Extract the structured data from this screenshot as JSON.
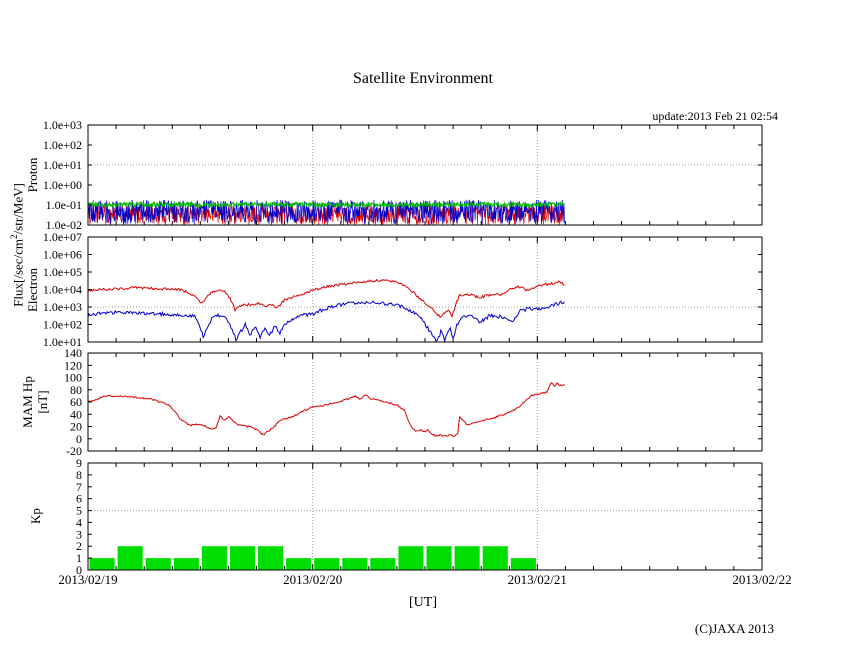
{
  "page": {
    "title": "Satellite Environment",
    "update_text": "update:2013 Feb 21 02:54",
    "x_axis_label": "[UT]",
    "copyright": "(C)JAXA 2013"
  },
  "axis_labels": {
    "flux_pre": "Flux[/sec/cm",
    "flux_sup": "2",
    "flux_post": "/str/MeV]",
    "proton": "Proton",
    "electron": "Electron",
    "mam_line1": "MAM Hp",
    "mam_line2": "[nT]",
    "kp": "Kp"
  },
  "colors": {
    "red": "#dd0000",
    "blue": "#0000cc",
    "green": "#00bb00",
    "kp_green": "#00dd00",
    "grid": "#999999",
    "axis": "#000000"
  },
  "x_axis": {
    "tick_labels": [
      "2013/02/19",
      "2013/02/20",
      "2013/02/21",
      "2013/02/22"
    ],
    "tick_hours": [
      0,
      24,
      48,
      72
    ],
    "minor_tick_hours": 3,
    "gridline_hours": [
      24,
      48
    ],
    "total_hours": 72,
    "data_end_hours": 50.9
  },
  "chart_data": [
    {
      "id": "proton",
      "type": "line",
      "ylabel": "Proton",
      "y_log": true,
      "ylim": [
        0.01,
        1000
      ],
      "y_tick_labels": [
        "1.0e+03",
        "1.0e+02",
        "1.0e+01",
        "1.0e+00",
        "1.0e-01",
        "1.0e-02"
      ],
      "y_tick_values": [
        1000,
        100,
        10,
        1,
        0.1,
        0.01
      ],
      "grid_value": 10,
      "note": "three noisy flux channels fluctuating between ~0.01 and ~0.2",
      "series": [
        {
          "name": "proton-channel-red",
          "color": "#dd0000",
          "band": [
            -2.0,
            -1.02
          ],
          "width": 0.7
        },
        {
          "name": "proton-channel-blue",
          "color": "#0000cc",
          "band": [
            -2.0,
            -0.74
          ],
          "width": 0.7
        },
        {
          "name": "proton-channel-green",
          "color": "#00bb00",
          "band": [
            -1.12,
            -0.86
          ],
          "width": 0.9
        }
      ]
    },
    {
      "id": "electron",
      "type": "line",
      "ylabel": "Electron",
      "y_log": true,
      "ylim": [
        10,
        10000000
      ],
      "y_tick_labels": [
        "1.0e+07",
        "1.0e+06",
        "1.0e+05",
        "1.0e+04",
        "1.0e+03",
        "1.0e+02",
        "1.0e+01"
      ],
      "y_tick_values": [
        10000000,
        1000000,
        100000,
        10000,
        1000,
        100,
        10
      ],
      "grid_value": 1000,
      "series": [
        {
          "name": "electron-high-energy",
          "color": "#dd0000",
          "noise": 0.07,
          "width": 1,
          "points": [
            [
              0,
              8900
            ],
            [
              1.3,
              10000
            ],
            [
              3.4,
              11000
            ],
            [
              5.0,
              12600
            ],
            [
              7.7,
              11000
            ],
            [
              9.6,
              10000
            ],
            [
              10.4,
              7900
            ],
            [
              11.4,
              4000
            ],
            [
              12.2,
              1600
            ],
            [
              12.8,
              5000
            ],
            [
              13.6,
              8900
            ],
            [
              14.6,
              7900
            ],
            [
              15.4,
              2000
            ],
            [
              15.7,
              710
            ],
            [
              16.2,
              1000
            ],
            [
              16.8,
              1400
            ],
            [
              17.5,
              1300
            ],
            [
              18.2,
              1600
            ],
            [
              18.9,
              1100
            ],
            [
              19.7,
              1400
            ],
            [
              20.2,
              890
            ],
            [
              21.0,
              2500
            ],
            [
              22.1,
              4000
            ],
            [
              23.2,
              6300
            ],
            [
              24.0,
              8900
            ],
            [
              25.9,
              16000
            ],
            [
              27.5,
              20000
            ],
            [
              29.1,
              27000
            ],
            [
              30.1,
              32000
            ],
            [
              31.7,
              32000
            ],
            [
              33.0,
              28000
            ],
            [
              33.9,
              17000
            ],
            [
              34.9,
              5800
            ],
            [
              35.5,
              3000
            ],
            [
              36.5,
              1000
            ],
            [
              37.6,
              280
            ],
            [
              38.5,
              630
            ],
            [
              38.9,
              320
            ],
            [
              39.4,
              2000
            ],
            [
              39.7,
              4700
            ],
            [
              40.8,
              5000
            ],
            [
              41.9,
              3500
            ],
            [
              42.9,
              5000
            ],
            [
              44.3,
              5000
            ],
            [
              45.1,
              11000
            ],
            [
              46.2,
              14000
            ],
            [
              46.9,
              8900
            ],
            [
              48.0,
              16000
            ],
            [
              49.4,
              21000
            ],
            [
              50.4,
              27000
            ],
            [
              50.9,
              18000
            ]
          ]
        },
        {
          "name": "electron-low-energy",
          "color": "#0000cc",
          "noise": 0.1,
          "width": 1,
          "points": [
            [
              0,
              320
            ],
            [
              1.3,
              450
            ],
            [
              3.4,
              500
            ],
            [
              5.6,
              450
            ],
            [
              7.7,
              400
            ],
            [
              9.8,
              350
            ],
            [
              11.4,
              320
            ],
            [
              12.0,
              63
            ],
            [
              12.3,
              20
            ],
            [
              12.7,
              50
            ],
            [
              13.2,
              200
            ],
            [
              13.9,
              320
            ],
            [
              14.6,
              280
            ],
            [
              15.4,
              50
            ],
            [
              15.8,
              13
            ],
            [
              16.2,
              32
            ],
            [
              16.8,
              100
            ],
            [
              17.3,
              25
            ],
            [
              17.8,
              79
            ],
            [
              18.4,
              20
            ],
            [
              18.9,
              63
            ],
            [
              19.4,
              25
            ],
            [
              20.0,
              79
            ],
            [
              20.5,
              32
            ],
            [
              21.0,
              100
            ],
            [
              21.8,
              200
            ],
            [
              22.6,
              320
            ],
            [
              24.0,
              400
            ],
            [
              25.3,
              790
            ],
            [
              26.9,
              1300
            ],
            [
              28.5,
              1600
            ],
            [
              30.1,
              1800
            ],
            [
              31.7,
              1600
            ],
            [
              33.0,
              1300
            ],
            [
              34.4,
              630
            ],
            [
              35.5,
              280
            ],
            [
              36.3,
              63
            ],
            [
              36.9,
              20
            ],
            [
              37.3,
              10
            ],
            [
              37.7,
              40
            ],
            [
              38.1,
              13
            ],
            [
              38.7,
              63
            ],
            [
              39.0,
              16
            ],
            [
              39.4,
              100
            ],
            [
              40.0,
              250
            ],
            [
              40.8,
              320
            ],
            [
              41.9,
              140
            ],
            [
              42.9,
              320
            ],
            [
              44.0,
              280
            ],
            [
              45.3,
              130
            ],
            [
              46.2,
              630
            ],
            [
              47.2,
              790
            ],
            [
              48.3,
              710
            ],
            [
              49.0,
              890
            ],
            [
              49.9,
              1400
            ],
            [
              50.9,
              2000
            ]
          ]
        }
      ]
    },
    {
      "id": "mam",
      "type": "line",
      "ylabel": "MAM Hp [nT]",
      "y_log": false,
      "ylim": [
        -20,
        140
      ],
      "y_tick_labels": [
        "140",
        "120",
        "100",
        "80",
        "60",
        "40",
        "20",
        "0",
        "-20"
      ],
      "y_tick_values": [
        140,
        120,
        100,
        80,
        60,
        40,
        20,
        0,
        -20
      ],
      "series": [
        {
          "name": "mam-hp",
          "color": "#dd0000",
          "noise": 1.3,
          "width": 1,
          "points": [
            [
              0,
              60
            ],
            [
              0.8,
              64
            ],
            [
              1.8,
              70
            ],
            [
              3.4,
              69
            ],
            [
              5.0,
              68
            ],
            [
              6.6,
              65
            ],
            [
              7.7,
              60
            ],
            [
              8.6,
              55
            ],
            [
              9.3,
              45
            ],
            [
              9.8,
              32
            ],
            [
              10.4,
              27
            ],
            [
              10.9,
              22
            ],
            [
              11.8,
              24
            ],
            [
              12.5,
              21
            ],
            [
              13.0,
              17
            ],
            [
              13.4,
              15
            ],
            [
              13.7,
              19
            ],
            [
              14.1,
              37
            ],
            [
              14.6,
              31
            ],
            [
              15.0,
              36
            ],
            [
              15.4,
              30
            ],
            [
              15.7,
              26
            ],
            [
              16.2,
              22
            ],
            [
              17.0,
              20
            ],
            [
              17.5,
              19
            ],
            [
              18.0,
              15
            ],
            [
              18.4,
              10
            ],
            [
              18.7,
              6
            ],
            [
              19.2,
              12
            ],
            [
              19.8,
              18
            ],
            [
              20.5,
              30
            ],
            [
              21.3,
              33
            ],
            [
              22.1,
              38
            ],
            [
              22.7,
              43
            ],
            [
              23.4,
              48
            ],
            [
              24.0,
              52
            ],
            [
              24.8,
              53
            ],
            [
              25.9,
              57
            ],
            [
              26.9,
              61
            ],
            [
              28.0,
              66
            ],
            [
              28.6,
              70
            ],
            [
              29.1,
              64
            ],
            [
              29.6,
              72
            ],
            [
              30.1,
              66
            ],
            [
              30.8,
              64
            ],
            [
              31.4,
              61
            ],
            [
              32.3,
              58
            ],
            [
              33.1,
              54
            ],
            [
              33.8,
              46
            ],
            [
              34.2,
              30
            ],
            [
              34.6,
              18
            ],
            [
              35.0,
              13
            ],
            [
              35.5,
              14
            ],
            [
              35.9,
              12
            ],
            [
              36.3,
              14
            ],
            [
              36.6,
              9
            ],
            [
              37.1,
              5
            ],
            [
              37.6,
              6
            ],
            [
              38.1,
              4
            ],
            [
              38.7,
              6
            ],
            [
              39.2,
              4
            ],
            [
              39.5,
              10
            ],
            [
              39.7,
              37
            ],
            [
              40.1,
              29
            ],
            [
              40.5,
              22
            ],
            [
              40.8,
              24
            ],
            [
              41.3,
              26
            ],
            [
              41.9,
              29
            ],
            [
              42.5,
              31
            ],
            [
              43.2,
              33
            ],
            [
              44.0,
              38
            ],
            [
              44.9,
              42
            ],
            [
              45.6,
              48
            ],
            [
              46.2,
              54
            ],
            [
              46.8,
              63
            ],
            [
              47.3,
              70
            ],
            [
              47.6,
              71
            ],
            [
              48.0,
              73
            ],
            [
              48.5,
              74
            ],
            [
              49.0,
              76
            ],
            [
              49.5,
              92
            ],
            [
              49.8,
              86
            ],
            [
              50.1,
              90
            ],
            [
              50.4,
              87
            ],
            [
              50.7,
              88
            ],
            [
              50.9,
              87
            ]
          ]
        }
      ]
    },
    {
      "id": "kp",
      "type": "bar",
      "ylabel": "Kp",
      "y_log": false,
      "ylim": [
        0,
        9
      ],
      "y_tick_labels": [
        "9",
        "8",
        "7",
        "6",
        "5",
        "4",
        "3",
        "2",
        "1",
        "0"
      ],
      "y_tick_values": [
        9,
        8,
        7,
        6,
        5,
        4,
        3,
        2,
        1,
        0
      ],
      "grid_value": 5,
      "bar_color": "#00dd00",
      "bar_width_hours": 3,
      "bar_start_hours": [
        0,
        3,
        6,
        9,
        12,
        15,
        18,
        21,
        24,
        27,
        30,
        33,
        36,
        39,
        42,
        45
      ],
      "values": [
        1,
        2,
        1,
        1,
        2,
        2,
        2,
        1,
        1,
        1,
        1,
        2,
        2,
        2,
        2,
        1
      ]
    }
  ]
}
